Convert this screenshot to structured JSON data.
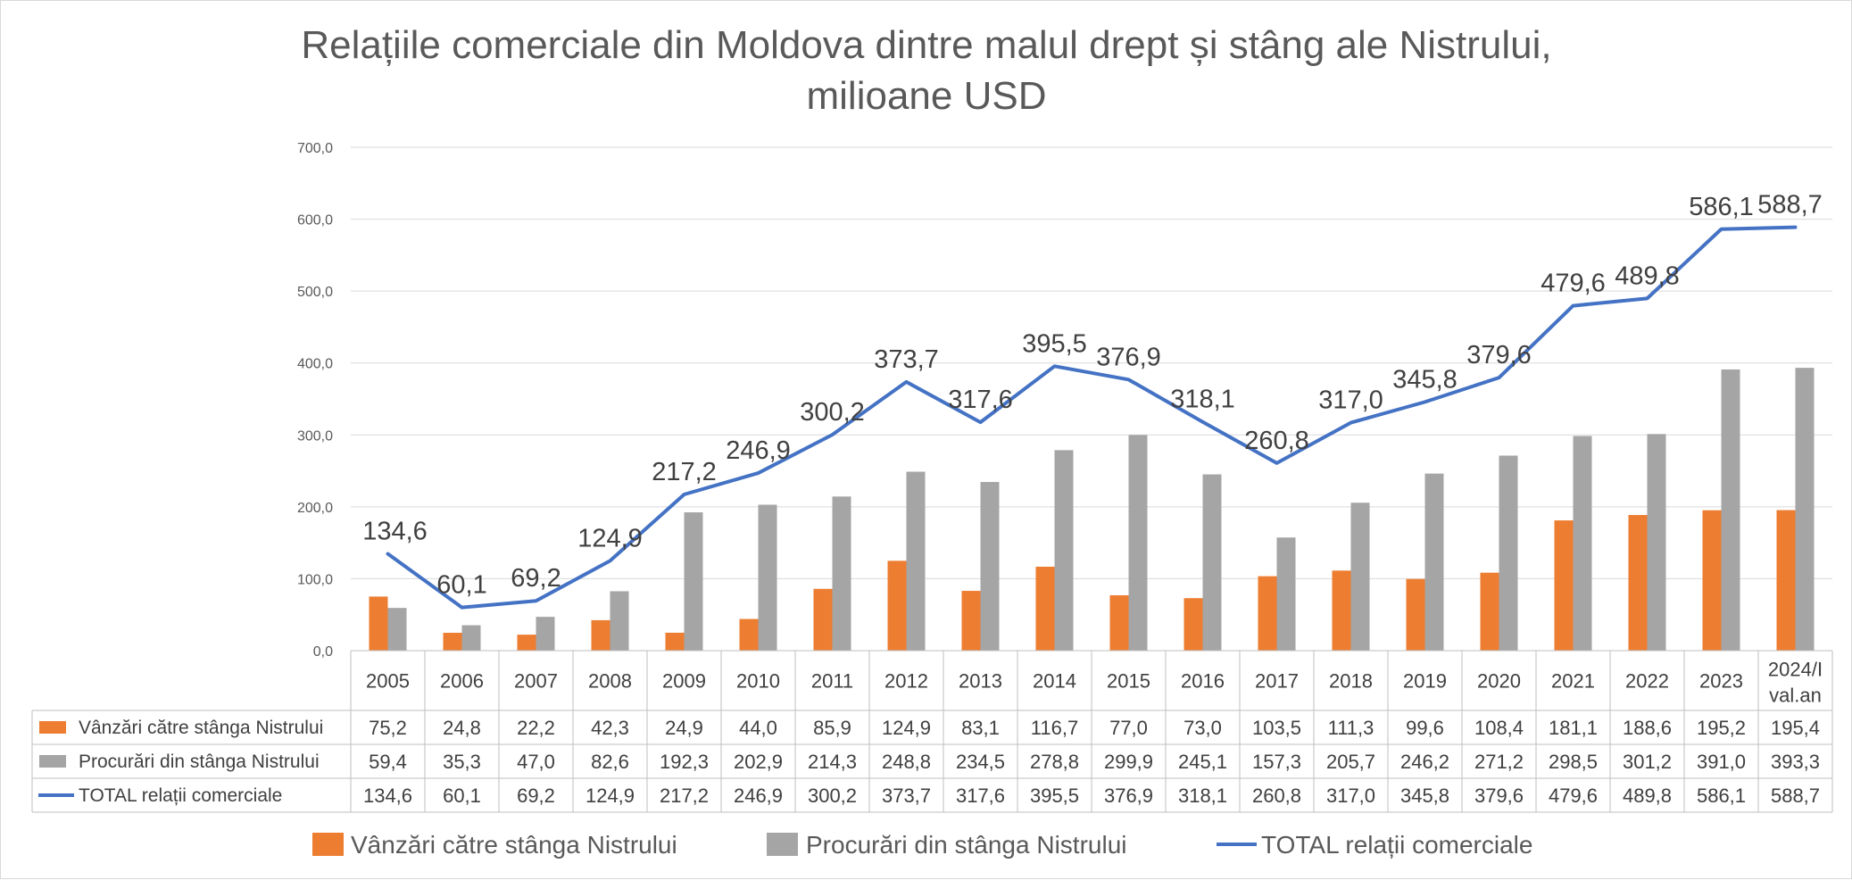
{
  "chart_data": {
    "type": "bar",
    "title_lines": [
      "Relațiile comerciale din Moldova dintre malul drept și stâng ale Nistrului,",
      "milioane USD"
    ],
    "categories": [
      [
        "2005"
      ],
      [
        "2006"
      ],
      [
        "2007"
      ],
      [
        "2008"
      ],
      [
        "2009"
      ],
      [
        "2010"
      ],
      [
        "2011"
      ],
      [
        "2012"
      ],
      [
        "2013"
      ],
      [
        "2014"
      ],
      [
        "2015"
      ],
      [
        "2016"
      ],
      [
        "2017"
      ],
      [
        "2018"
      ],
      [
        "2019"
      ],
      [
        "2020"
      ],
      [
        "2021"
      ],
      [
        "2022"
      ],
      [
        "2023"
      ],
      [
        "2024/I",
        "val.an"
      ]
    ],
    "y_ticks": [
      "0,0",
      "100,0",
      "200,0",
      "300,0",
      "400,0",
      "500,0",
      "600,0",
      "700,0"
    ],
    "ylim": [
      0,
      700
    ],
    "grid": true,
    "legend_position": "bottom",
    "series": [
      {
        "name": "Vânzări către stânga Nistrului",
        "type": "bar",
        "color": "#ED7D31",
        "values": [
          75.2,
          24.8,
          22.2,
          42.3,
          24.9,
          44.0,
          85.9,
          124.9,
          83.1,
          116.7,
          77.0,
          73.0,
          103.5,
          111.3,
          99.6,
          108.4,
          181.1,
          188.6,
          195.2,
          195.4
        ],
        "labels": [
          "75,2",
          "24,8",
          "22,2",
          "42,3",
          "24,9",
          "44,0",
          "85,9",
          "124,9",
          "83,1",
          "116,7",
          "77,0",
          "73,0",
          "103,5",
          "111,3",
          "99,6",
          "108,4",
          "181,1",
          "188,6",
          "195,2",
          "195,4"
        ]
      },
      {
        "name": "Procurări din stânga Nistrului",
        "type": "bar",
        "color": "#A5A5A5",
        "values": [
          59.4,
          35.3,
          47.0,
          82.6,
          192.3,
          202.9,
          214.3,
          248.8,
          234.5,
          278.8,
          299.9,
          245.1,
          157.3,
          205.7,
          246.2,
          271.2,
          298.5,
          301.2,
          391.0,
          393.3
        ],
        "labels": [
          "59,4",
          "35,3",
          "47,0",
          "82,6",
          "192,3",
          "202,9",
          "214,3",
          "248,8",
          "234,5",
          "278,8",
          "299,9",
          "245,1",
          "157,3",
          "205,7",
          "246,2",
          "271,2",
          "298,5",
          "301,2",
          "391,0",
          "393,3"
        ]
      },
      {
        "name": "TOTAL relații comerciale",
        "type": "line",
        "color": "#4472C4",
        "values": [
          134.6,
          60.1,
          69.2,
          124.9,
          217.2,
          246.9,
          300.2,
          373.7,
          317.6,
          395.5,
          376.9,
          318.1,
          260.8,
          317.0,
          345.8,
          379.6,
          479.6,
          489.8,
          586.1,
          588.7
        ],
        "labels": [
          "134,6",
          "60,1",
          "69,2",
          "124,9",
          "217,2",
          "246,9",
          "300,2",
          "373,7",
          "317,6",
          "395,5",
          "376,9",
          "318,1",
          "260,8",
          "317,0",
          "345,8",
          "379,6",
          "479,6",
          "489,8",
          "586,1",
          "588,7"
        ]
      }
    ]
  }
}
